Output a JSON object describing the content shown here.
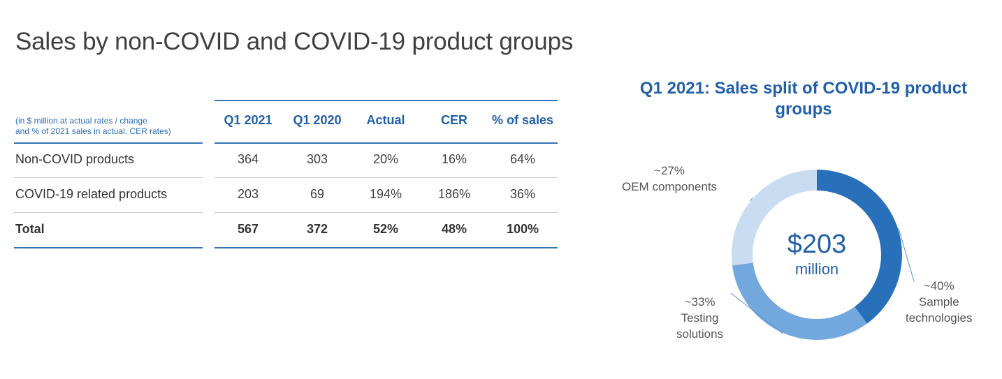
{
  "page": {
    "title": "Sales by non-COVID and COVID-19 product groups"
  },
  "table": {
    "note_line1": "(in $ million at actual rates / change",
    "note_line2": "and % of 2021 sales in actual, CER rates)",
    "columns": [
      "Q1 2021",
      "Q1 2020",
      "Actual",
      "CER",
      "% of sales"
    ],
    "rows": [
      {
        "label": "Non-COVID products",
        "values": [
          "364",
          "303",
          "20%",
          "16%",
          "64%"
        ]
      },
      {
        "label": "COVID-19 related products",
        "values": [
          "203",
          "69",
          "194%",
          "186%",
          "36%"
        ]
      },
      {
        "label": "Total",
        "values": [
          "567",
          "372",
          "52%",
          "48%",
          "100%"
        ]
      }
    ]
  },
  "chart_data": {
    "type": "pie",
    "title": "Q1 2021: Sales split of COVID-19 product groups",
    "center_value": "$203",
    "center_unit": "million",
    "series": [
      {
        "name": "Sample technologies",
        "value": 40,
        "pct_label": "~40%",
        "label_line1": "Sample",
        "label_line2": "technologies",
        "color": "#2970ba"
      },
      {
        "name": "Testing solutions",
        "value": 33,
        "pct_label": "~33%",
        "label_line1": "Testing",
        "label_line2": "solutions",
        "color": "#72a8dd"
      },
      {
        "name": "OEM components",
        "value": 27,
        "pct_label": "~27%",
        "label_line1": "OEM components",
        "label_line2": "",
        "color": "#c9dcf1"
      }
    ]
  }
}
